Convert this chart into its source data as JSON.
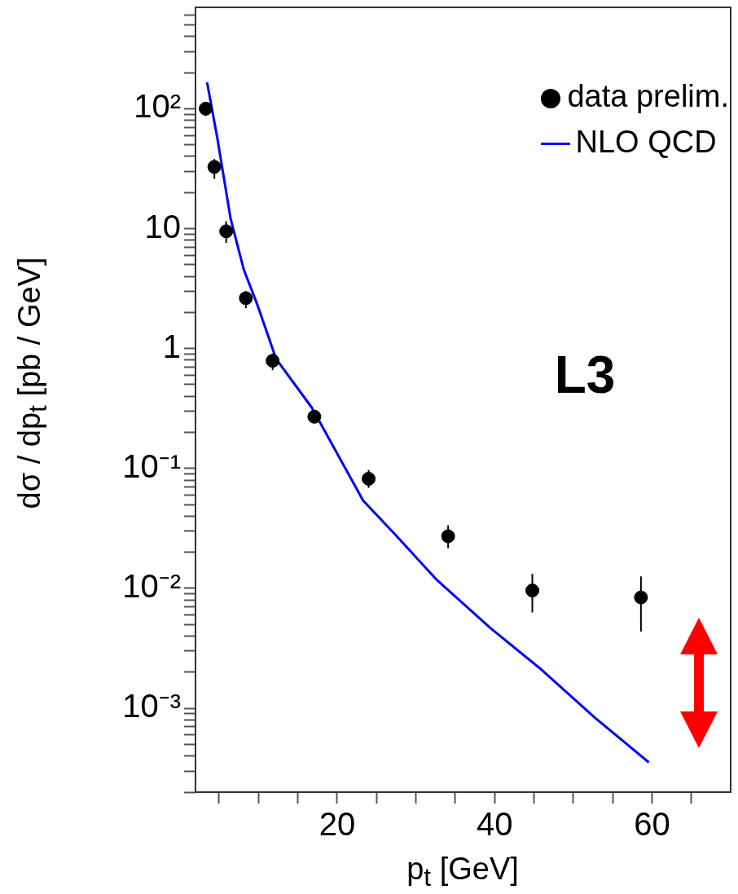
{
  "chart_data": {
    "type": "scatter",
    "xlabel": "p$_{t}$  [GeV]",
    "ylabel": "dσ / dp$_{t}$ [pb / GeV]",
    "log": "y",
    "grid": false,
    "legend": "top right",
    "xlim": [
      2,
      70
    ],
    "ylim": [
      0.0002,
      700
    ],
    "xticks": [
      {
        "value": 5,
        "label": null
      },
      {
        "value": 10,
        "label": null
      },
      {
        "value": 15,
        "label": null
      },
      20,
      {
        "value": 25,
        "label": null
      },
      {
        "value": 30,
        "label": null
      },
      {
        "value": 35,
        "label": null
      },
      40,
      {
        "value": 45,
        "label": null
      },
      {
        "value": 50,
        "label": null
      },
      {
        "value": 55,
        "label": null
      },
      60,
      {
        "value": 65,
        "label": null
      }
    ],
    "yticks": [
      {
        "value": 0.0002,
        "label": null
      },
      {
        "value": 0.0003,
        "label": null
      },
      {
        "value": 0.0004,
        "label": null
      },
      {
        "value": 0.0005,
        "label": null
      },
      {
        "value": 0.0006,
        "label": null
      },
      {
        "value": 0.0007,
        "label": null
      },
      {
        "value": 0.0008,
        "label": null
      },
      {
        "value": 0.0009,
        "label": null
      },
      {
        "value": 0.001,
        "label": "10⁻³"
      },
      {
        "value": 0.002,
        "label": null
      },
      {
        "value": 0.003,
        "label": null
      },
      {
        "value": 0.004,
        "label": null
      },
      {
        "value": 0.005,
        "label": null
      },
      {
        "value": 0.006,
        "label": null
      },
      {
        "value": 0.007,
        "label": null
      },
      {
        "value": 0.008,
        "label": null
      },
      {
        "value": 0.009,
        "label": null
      },
      {
        "value": 0.01,
        "label": "10⁻²"
      },
      {
        "value": 0.02,
        "label": null
      },
      {
        "value": 0.03,
        "label": null
      },
      {
        "value": 0.04,
        "label": null
      },
      {
        "value": 0.05,
        "label": null
      },
      {
        "value": 0.06,
        "label": null
      },
      {
        "value": 0.07,
        "label": null
      },
      {
        "value": 0.08,
        "label": null
      },
      {
        "value": 0.09,
        "label": null
      },
      {
        "value": 0.1,
        "label": "10⁻¹"
      },
      {
        "value": 0.2,
        "label": null
      },
      {
        "value": 0.3,
        "label": null
      },
      {
        "value": 0.4,
        "label": null
      },
      {
        "value": 0.5,
        "label": null
      },
      {
        "value": 0.6,
        "label": null
      },
      {
        "value": 0.7,
        "label": null
      },
      {
        "value": 0.8,
        "label": null
      },
      {
        "value": 0.9,
        "label": null
      },
      1,
      {
        "value": 2,
        "label": null
      },
      {
        "value": 3,
        "label": null
      },
      {
        "value": 4,
        "label": null
      },
      {
        "value": 5,
        "label": null
      },
      {
        "value": 6,
        "label": null
      },
      {
        "value": 7,
        "label": null
      },
      {
        "value": 8,
        "label": null
      },
      {
        "value": 9,
        "label": null
      },
      10,
      {
        "value": 20,
        "label": null
      },
      {
        "value": 30,
        "label": null
      },
      {
        "value": 40,
        "label": null
      },
      {
        "value": 50,
        "label": null
      },
      {
        "value": 60,
        "label": null
      },
      {
        "value": 70,
        "label": null
      },
      {
        "value": 80,
        "label": null
      },
      {
        "value": 90,
        "label": null
      },
      {
        "value": 100,
        "label": "10²"
      },
      {
        "value": 200,
        "label": null
      },
      {
        "value": 300,
        "label": null
      },
      {
        "value": 400,
        "label": null
      },
      {
        "value": 500,
        "label": null
      },
      {
        "value": 600,
        "label": null
      }
    ],
    "annotations": [
      "L3"
    ],
    "series": [
      {
        "name": "data prelim.",
        "type": "scatter",
        "marker": "circle",
        "color": "#000000",
        "x": [
          3.3,
          4.4,
          5.9,
          8.4,
          11.8,
          17.1,
          24.0,
          34.1,
          44.8,
          58.6
        ],
        "values": [
          100,
          32.7,
          9.5,
          2.63,
          0.79,
          0.27,
          0.082,
          0.0272,
          0.0096,
          0.0084
        ],
        "errors": [
          [
            87,
            104
          ],
          [
            26,
            38
          ],
          [
            7.6,
            11.5
          ],
          [
            2.17,
            3.0
          ],
          [
            0.66,
            0.91
          ],
          [
            0.24,
            0.3
          ],
          [
            0.069,
            0.097
          ],
          [
            0.0216,
            0.0336
          ],
          [
            0.0063,
            0.0132
          ],
          [
            0.00437,
            0.0126
          ]
        ]
      },
      {
        "name": "NLO QCD",
        "type": "line",
        "marker": "none",
        "line_style": "solid",
        "color": "#0000ff",
        "x": [
          3.47,
          4.77,
          6.46,
          8.16,
          9.87,
          12.24,
          16.8,
          23.3,
          27.5,
          32.7,
          39.5,
          46.0,
          52.8,
          59.6
        ],
        "values": [
          166,
          57,
          12.1,
          4.5,
          2.31,
          0.82,
          0.32,
          0.054,
          0.0275,
          0.0117,
          0.00465,
          0.00209,
          0.00083,
          0.000354
        ]
      }
    ]
  }
}
